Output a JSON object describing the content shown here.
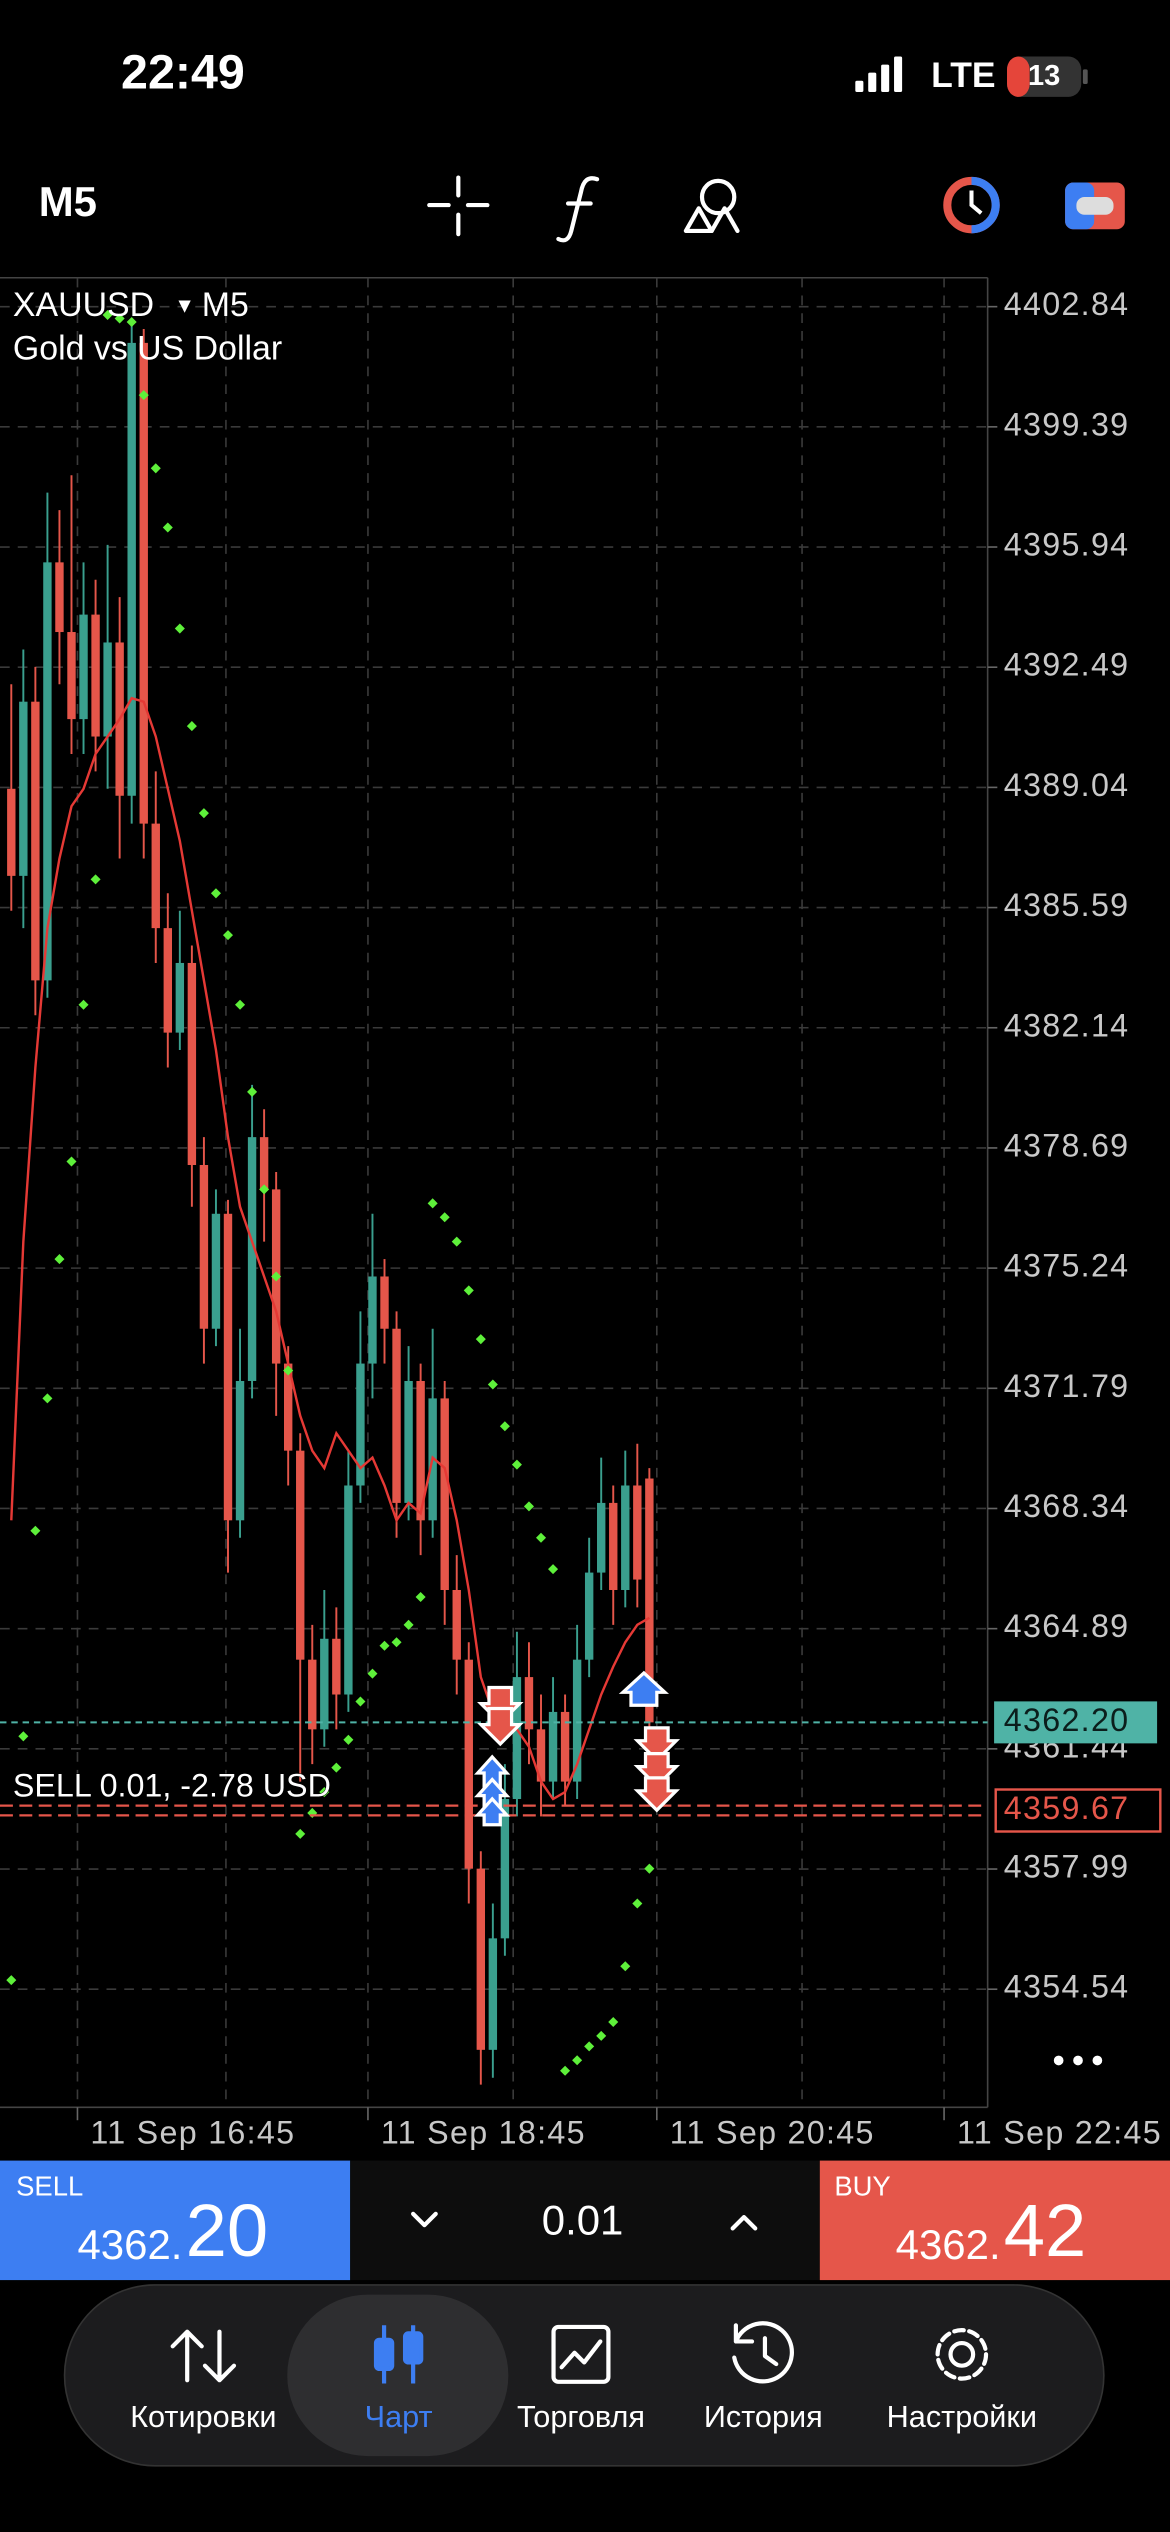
{
  "status_bar": {
    "time": "22:49",
    "network": "LTE",
    "battery": "13"
  },
  "toolbar": {
    "timeframe": "M5"
  },
  "chart_data": {
    "type": "candlestick",
    "symbol": "XAUUSD",
    "timeframe": "M5",
    "description": "Gold vs US Dollar",
    "ylim": [
      4351.15,
      4403.67
    ],
    "yticks": [
      4402.84,
      4399.39,
      4395.94,
      4392.49,
      4389.04,
      4385.59,
      4382.14,
      4378.69,
      4375.24,
      4371.79,
      4368.34,
      4364.89,
      4361.44,
      4357.99,
      4354.54
    ],
    "grid": true,
    "x_labels": [
      "11 Sep 16:45",
      "11 Sep 18:45",
      "11 Sep 20:45",
      "11 Sep 22:45"
    ],
    "up_color": "#3a9f8e",
    "down_color": "#e5564a",
    "candles": {
      "open": [
        4389.0,
        4386.5,
        4391.5,
        4383.5,
        4395.5,
        4393.5,
        4391.0,
        4394.0,
        4390.5,
        4393.2,
        4388.8,
        4401.8,
        4388.0,
        4385.0,
        4382.0,
        4384.0,
        4378.2,
        4373.5,
        4376.8,
        4368.0,
        4372.0,
        4379.0,
        4377.5,
        4372.5,
        4370.0,
        4364.0,
        4362.0,
        4364.6,
        4363.0,
        4369.0,
        4372.5,
        4375.0,
        4373.5,
        4368.5,
        4372.0,
        4368.0,
        4371.5,
        4366.0,
        4364.0,
        4358.0,
        4352.8,
        4356.0,
        4360.0,
        4363.5,
        4362.0,
        4360.5,
        4362.5,
        4360.5,
        4364.0,
        4366.5,
        4368.5,
        4366.0,
        4369.0,
        4369.2
      ],
      "high": [
        4392.0,
        4393.0,
        4392.5,
        4397.5,
        4397.0,
        4398.0,
        4395.5,
        4395.0,
        4396.0,
        4394.5,
        4402.5,
        4402.2,
        4389.5,
        4386.0,
        4385.5,
        4384.5,
        4379.0,
        4377.5,
        4377.2,
        4373.5,
        4380.5,
        4379.8,
        4378.0,
        4373.0,
        4370.5,
        4365.0,
        4366.0,
        4365.5,
        4370.0,
        4374.0,
        4376.8,
        4375.5,
        4374.0,
        4373.0,
        4372.5,
        4373.5,
        4372.0,
        4367.0,
        4364.5,
        4358.5,
        4357.0,
        4361.0,
        4364.8,
        4364.5,
        4363.0,
        4363.5,
        4363.0,
        4365.0,
        4367.5,
        4369.8,
        4369.0,
        4370.0,
        4370.2,
        4369.5
      ],
      "low": [
        4385.5,
        4385.0,
        4382.5,
        4383.0,
        4392.0,
        4390.0,
        4390.0,
        4389.5,
        4389.0,
        4387.0,
        4388.0,
        4387.0,
        4384.0,
        4381.0,
        4381.5,
        4377.0,
        4372.5,
        4373.0,
        4366.5,
        4367.5,
        4371.5,
        4376.0,
        4371.0,
        4369.0,
        4360.5,
        4361.0,
        4361.5,
        4362.0,
        4362.5,
        4368.5,
        4371.5,
        4372.5,
        4367.5,
        4368.0,
        4367.0,
        4367.5,
        4365.0,
        4363.0,
        4357.0,
        4351.8,
        4352.0,
        4355.5,
        4359.5,
        4361.0,
        4359.5,
        4360.0,
        4359.8,
        4360.0,
        4363.5,
        4366.0,
        4365.0,
        4365.5,
        4365.5,
        4362.0
      ],
      "close": [
        4386.5,
        4391.5,
        4383.5,
        4395.5,
        4393.5,
        4391.0,
        4394.0,
        4390.5,
        4393.2,
        4388.8,
        4401.8,
        4388.0,
        4385.0,
        4382.0,
        4384.0,
        4378.2,
        4373.5,
        4376.8,
        4368.0,
        4372.0,
        4379.0,
        4377.5,
        4372.5,
        4370.0,
        4364.0,
        4362.0,
        4364.6,
        4363.0,
        4369.0,
        4372.5,
        4375.0,
        4373.5,
        4368.5,
        4372.0,
        4368.0,
        4371.5,
        4366.0,
        4364.0,
        4358.0,
        4352.8,
        4356.0,
        4360.0,
        4363.5,
        4362.0,
        4360.5,
        4362.5,
        4360.5,
        4364.0,
        4366.5,
        4368.5,
        4366.0,
        4369.0,
        4366.3,
        4362.2
      ]
    },
    "ma": {
      "color": "#e53935",
      "values": [
        4368,
        4376,
        4381,
        4385,
        4387,
        4388.5,
        4389,
        4390,
        4390.5,
        4391,
        4391.6,
        4391.5,
        4390.5,
        4389,
        4387.5,
        4385.5,
        4383.5,
        4381.5,
        4379,
        4377,
        4376,
        4375,
        4374,
        4372.5,
        4371,
        4370,
        4369.5,
        4370.5,
        4370,
        4369.5,
        4369.8,
        4369,
        4368,
        4368.5,
        4368.2,
        4369.8,
        4369.5,
        4368,
        4366,
        4363.5,
        4362.5,
        4362.2,
        4362,
        4361.5,
        4360.5,
        4360,
        4360.2,
        4361,
        4362,
        4363,
        4363.8,
        4364.5,
        4365,
        4365.2
      ]
    },
    "sar": {
      "color": "#5ef03a",
      "values": [
        4354.8,
        4361.8,
        4367.7,
        4371.5,
        4375.5,
        4378.3,
        4382.8,
        4386.4,
        4402.6,
        4402.5,
        4402.4,
        4400.3,
        4398.2,
        4396.5,
        4393.6,
        4390.8,
        4388.3,
        4386.0,
        4384.8,
        4382.8,
        4380.3,
        4377.5,
        4375.0,
        4372.3,
        4359.0,
        4359.6,
        4360.2,
        4360.9,
        4361.7,
        4362.8,
        4363.6,
        4364.4,
        4364.5,
        4365.0,
        4365.8,
        4377.1,
        4376.7,
        4376.0,
        4374.6,
        4373.2,
        4371.9,
        4370.7,
        4369.6,
        4368.4,
        4367.5,
        4366.6,
        4352.2,
        4352.5,
        4352.9,
        4353.2,
        4353.6,
        4355.2,
        4357.0,
        4358.0
      ]
    },
    "bid": {
      "value": 4362.2,
      "label": "4362.20",
      "color": "#4fb3a6"
    },
    "order": {
      "label": "SELL 0.01, -2.78 USD",
      "price": 4359.67,
      "color": "#e5564a"
    }
  },
  "trade_panel": {
    "sell_label": "SELL",
    "sell_price_main": "4362.",
    "sell_price_big": "20",
    "volume": "0.01",
    "buy_label": "BUY",
    "buy_price_main": "4362.",
    "buy_price_big": "42"
  },
  "tab_bar": {
    "tabs": [
      "Котировки",
      "Чарт",
      "Торговля",
      "История",
      "Настройки"
    ]
  }
}
